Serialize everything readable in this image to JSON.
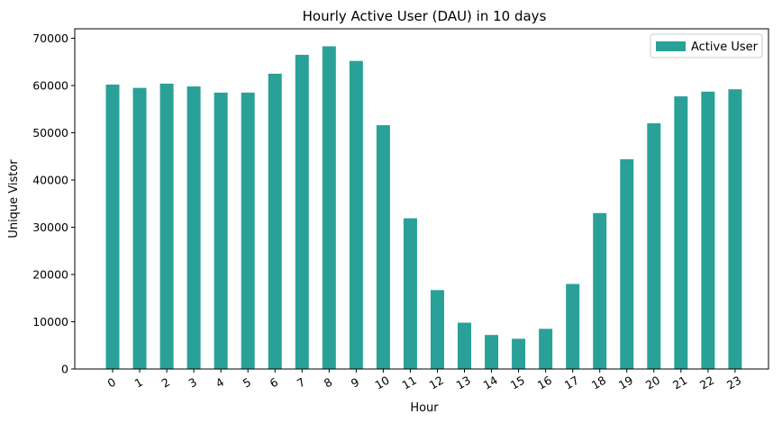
{
  "chart_data": {
    "type": "bar",
    "title": "Hourly Active User (DAU) in 10 days",
    "xlabel": "Hour",
    "ylabel": "Unique Vistor",
    "categories": [
      "0",
      "1",
      "2",
      "3",
      "4",
      "5",
      "6",
      "7",
      "8",
      "9",
      "10",
      "11",
      "12",
      "13",
      "14",
      "15",
      "16",
      "17",
      "18",
      "19",
      "20",
      "21",
      "22",
      "23"
    ],
    "series": [
      {
        "name": "Active User",
        "color": "#2aa198",
        "values": [
          60200,
          59500,
          60400,
          59800,
          58500,
          58500,
          62500,
          66500,
          68300,
          65200,
          51600,
          31900,
          16700,
          9800,
          7200,
          6400,
          8500,
          18000,
          33000,
          44400,
          52000,
          57700,
          58700,
          59200
        ]
      }
    ],
    "ylim": [
      0,
      72000
    ],
    "yticks": [
      0,
      10000,
      20000,
      30000,
      40000,
      50000,
      60000,
      70000
    ],
    "xtick_rotation": -30,
    "grid": false,
    "legend_position": "top-right"
  }
}
